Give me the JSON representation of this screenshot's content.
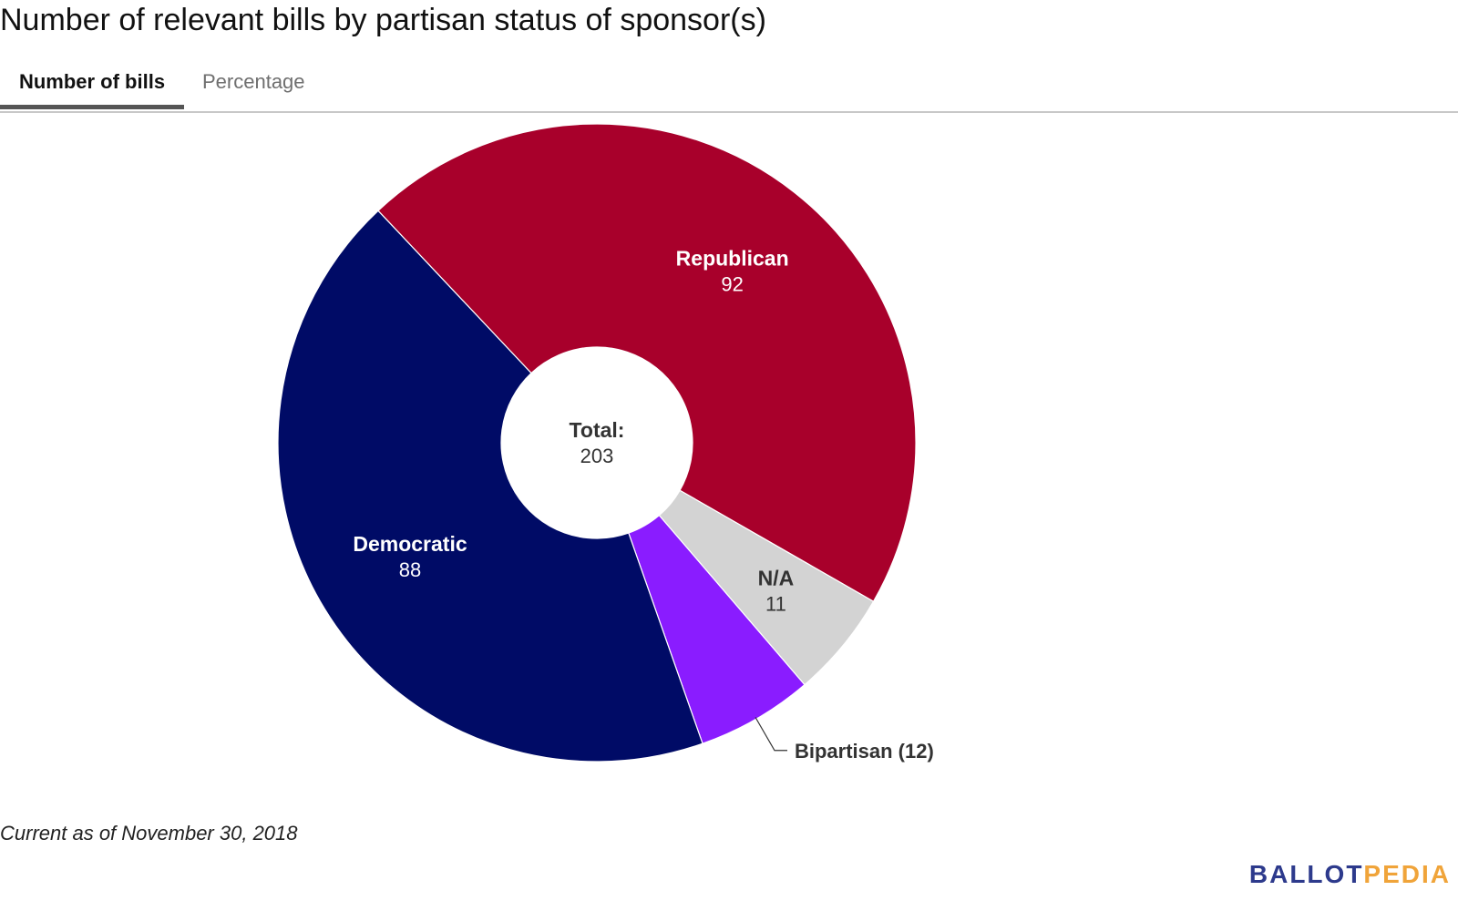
{
  "title": "Number of relevant bills by partisan status of sponsor(s)",
  "tabs": [
    {
      "label": "Number of bills",
      "active": true
    },
    {
      "label": "Percentage",
      "active": false
    }
  ],
  "footnote": "Current as of November 30, 2018",
  "brand": {
    "part1": "BALLOT",
    "part2": "PEDIA",
    "color1": "#2d3a8c",
    "color2": "#f0a43a"
  },
  "chart_data": {
    "type": "pie",
    "donut": true,
    "center_label": "Total:",
    "center_value": "203",
    "slices": [
      {
        "label": "Republican",
        "value": 92,
        "color": "#a8002b",
        "label_position": "inside"
      },
      {
        "label": "N/A",
        "value": 11,
        "color": "#d3d3d3",
        "label_position": "inside"
      },
      {
        "label": "Bipartisan",
        "value": 12,
        "color": "#8a1cff",
        "label_position": "outside",
        "outside_text": "Bipartisan (12)"
      },
      {
        "label": "Democratic",
        "value": 88,
        "color": "#000b66",
        "label_position": "inside"
      }
    ]
  }
}
